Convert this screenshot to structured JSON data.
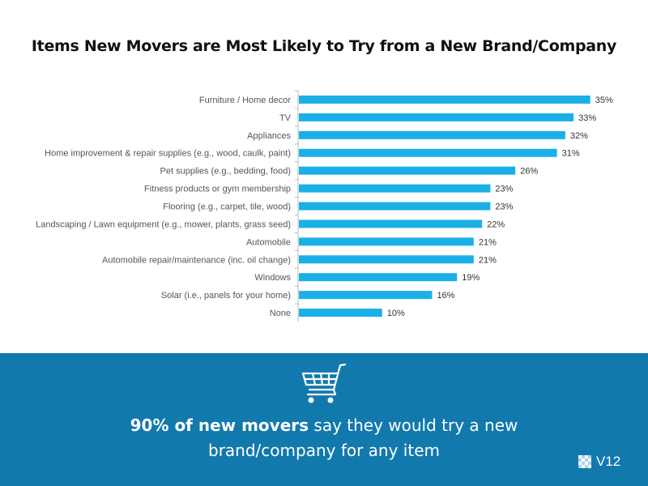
{
  "chart_data": {
    "type": "bar",
    "orientation": "horizontal",
    "title": "Items New Movers are Most Likely to Try from a New Brand/Company",
    "categories": [
      "Furniture / Home decor",
      "TV",
      "Appliances",
      "Home improvement & repair supplies (e.g., wood, caulk, paint)",
      "Pet supplies (e.g., bedding, food)",
      "Fitness products or gym membership",
      "Flooring (e.g., carpet, tile, wood)",
      "Landscaping / Lawn equipment (e.g., mower, plants, grass seed)",
      "Automobile",
      "Automobile repair/maintenance (inc. oil change)",
      "Windows",
      "Solar (i.e., panels for your home)",
      "None"
    ],
    "values": [
      35,
      33,
      32,
      31,
      26,
      23,
      23,
      22,
      21,
      21,
      19,
      16,
      10
    ],
    "value_labels": [
      "35%",
      "33%",
      "32%",
      "31%",
      "26%",
      "23%",
      "23%",
      "22%",
      "21%",
      "21%",
      "19%",
      "16%",
      "10%"
    ],
    "xlim": [
      0,
      36
    ],
    "grid": false,
    "bar_color": "#1ab0e6"
  },
  "banner": {
    "highlight": "90% of new movers",
    "rest_line1": " say they would try a new",
    "line2": "brand/company for any item",
    "background": "#1279ad",
    "icon": "shopping-cart-icon"
  },
  "brand": {
    "name": "V12",
    "icon": "checkered-logo-icon"
  }
}
